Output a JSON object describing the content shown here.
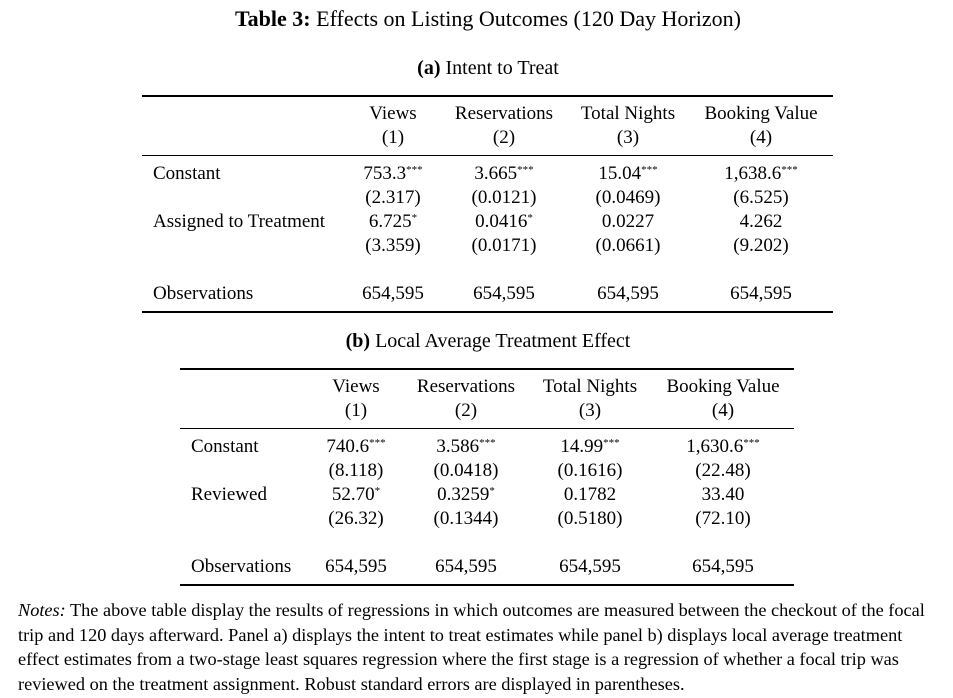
{
  "title": {
    "bold": "Table 3:",
    "text": "Effects on Listing Outcomes (120 Day Horizon)"
  },
  "panel_a": {
    "label": "(a)",
    "title": "Intent to Treat",
    "columns": [
      {
        "name": "Views",
        "num": "(1)"
      },
      {
        "name": "Reservations",
        "num": "(2)"
      },
      {
        "name": "Total Nights",
        "num": "(3)"
      },
      {
        "name": "Booking Value",
        "num": "(4)"
      }
    ],
    "rows": [
      {
        "label": "Constant",
        "coefs": [
          "753.3",
          "3.665",
          "15.04",
          "1,638.6"
        ],
        "stars": [
          "***",
          "***",
          "***",
          "***"
        ],
        "ses": [
          "(2.317)",
          "(0.0121)",
          "(0.0469)",
          "(6.525)"
        ]
      },
      {
        "label": "Assigned to Treatment",
        "coefs": [
          "6.725",
          "0.0416",
          "0.0227",
          "4.262"
        ],
        "stars": [
          "*",
          "*",
          "",
          ""
        ],
        "ses": [
          "(3.359)",
          "(0.0171)",
          "(0.0661)",
          "(9.202)"
        ]
      }
    ],
    "observations": {
      "label": "Observations",
      "values": [
        "654,595",
        "654,595",
        "654,595",
        "654,595"
      ]
    }
  },
  "panel_b": {
    "label": "(b)",
    "title": "Local Average Treatment Effect",
    "columns": [
      {
        "name": "Views",
        "num": "(1)"
      },
      {
        "name": "Reservations",
        "num": "(2)"
      },
      {
        "name": "Total Nights",
        "num": "(3)"
      },
      {
        "name": "Booking Value",
        "num": "(4)"
      }
    ],
    "rows": [
      {
        "label": "Constant",
        "coefs": [
          "740.6",
          "3.586",
          "14.99",
          "1,630.6"
        ],
        "stars": [
          "***",
          "***",
          "***",
          "***"
        ],
        "ses": [
          "(8.118)",
          "(0.0418)",
          "(0.1616)",
          "(22.48)"
        ]
      },
      {
        "label": "Reviewed",
        "coefs": [
          "52.70",
          "0.3259",
          "0.1782",
          "33.40"
        ],
        "stars": [
          "*",
          "*",
          "",
          ""
        ],
        "ses": [
          "(26.32)",
          "(0.1344)",
          "(0.5180)",
          "(72.10)"
        ]
      }
    ],
    "observations": {
      "label": "Observations",
      "values": [
        "654,595",
        "654,595",
        "654,595",
        "654,595"
      ]
    }
  },
  "notes": {
    "label": "Notes:",
    "text": "The above table display the results of regressions in which outcomes are measured between the checkout of the focal trip and 120 days afterward. Panel a) displays the intent to treat estimates while panel b) displays local average treatment effect estimates from a two-stage least squares regression where the first stage is a regression of whether a focal trip was reviewed on the treatment assignment. Robust standard errors are displayed in parentheses."
  }
}
